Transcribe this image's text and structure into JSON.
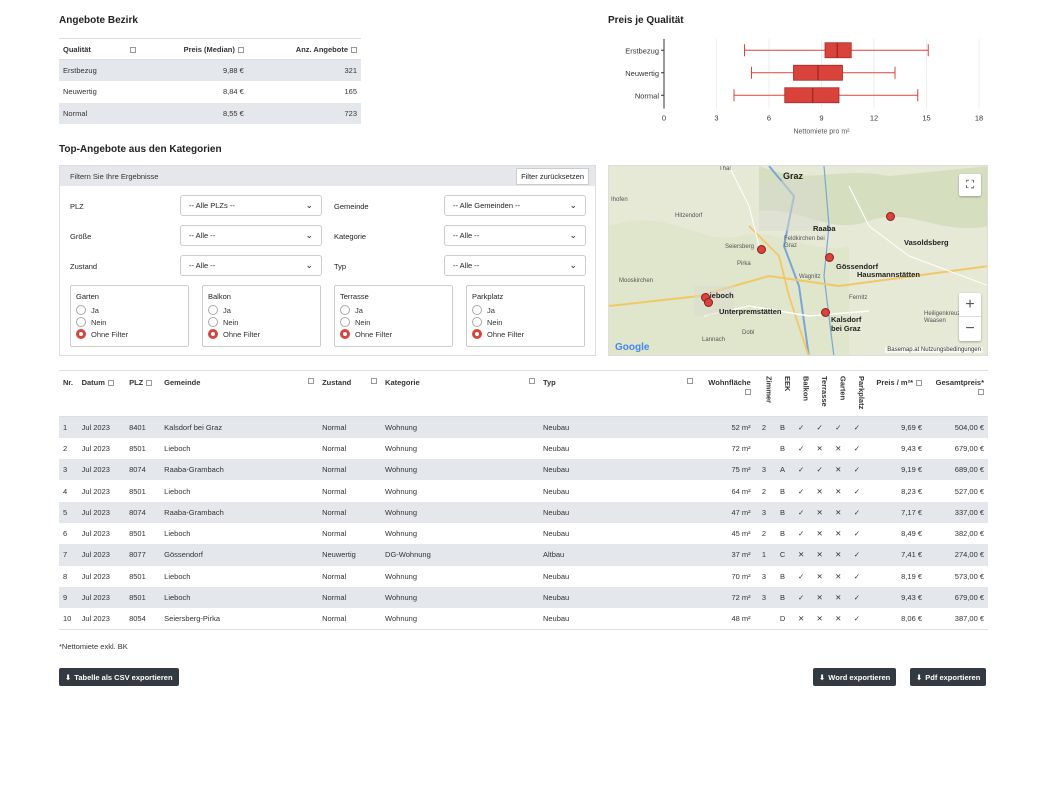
{
  "summary": {
    "title": "Angebote Bezirk",
    "headers": [
      "Qualität",
      "Preis (Median)",
      "Anz. Angebote"
    ],
    "rows": [
      [
        "Erstbezug",
        "9,88 €",
        "321"
      ],
      [
        "Neuwertig",
        "8,84 €",
        "165"
      ],
      [
        "Normal",
        "8,55 €",
        "723"
      ]
    ]
  },
  "chart_data": {
    "type": "box",
    "title": "Preis je Qualität",
    "xlabel": "Nettomiete pro m²",
    "ylabel": "",
    "xlim": [
      0,
      18
    ],
    "xticks": [
      0,
      3,
      6,
      9,
      12,
      15,
      18
    ],
    "categories": [
      "Erstbezug",
      "Neuwertig",
      "Normal"
    ],
    "boxes": [
      {
        "name": "Erstbezug",
        "min": 4.6,
        "q1": 9.2,
        "median": 9.9,
        "q3": 10.7,
        "max": 15.1
      },
      {
        "name": "Neuwertig",
        "min": 5.0,
        "q1": 7.4,
        "median": 8.8,
        "q3": 10.2,
        "max": 13.2
      },
      {
        "name": "Normal",
        "min": 4.0,
        "q1": 6.9,
        "median": 8.5,
        "q3": 10.0,
        "max": 14.5
      }
    ],
    "color": "#d9433b",
    "grid": true
  },
  "section_title": "Top-Angebote aus den Kategorien",
  "filter": {
    "header": "Filtern Sie Ihre Ergebnisse",
    "reset_label": "Filter zurücksetzen",
    "plz": {
      "label": "PLZ",
      "value": "-- Alle PLZs --"
    },
    "gemeinde": {
      "label": "Gemeinde",
      "value": "-- Alle Gemeinden --"
    },
    "groesse": {
      "label": "Größe",
      "value": "-- Alle --"
    },
    "kategorie": {
      "label": "Kategorie",
      "value": "-- Alle --"
    },
    "zustand": {
      "label": "Zustand",
      "value": "-- Alle --"
    },
    "typ": {
      "label": "Typ",
      "value": "-- Alle --"
    },
    "radios": [
      {
        "title": "Garten",
        "options": [
          "Ja",
          "Nein",
          "Ohne Filter"
        ],
        "selected": 2
      },
      {
        "title": "Balkon",
        "options": [
          "Ja",
          "Nein",
          "Ohne Filter"
        ],
        "selected": 2
      },
      {
        "title": "Terrasse",
        "options": [
          "Ja",
          "Nein",
          "Ohne Filter"
        ],
        "selected": 2
      },
      {
        "title": "Parkplatz",
        "options": [
          "Ja",
          "Nein",
          "Ohne Filter"
        ],
        "selected": 2
      }
    ]
  },
  "map": {
    "labels": {
      "graz": "Graz",
      "raaba": "Raaba",
      "vasoldsberg": "Vasoldsberg",
      "seiersberg": "Seiersberg",
      "goessendorf": "Gössendorf",
      "hausmannstaetten": "Hausmannstätten",
      "lieboch": "Lieboch",
      "unterpremstaetten": "Unterpremstätten",
      "kalsdorf": "Kalsdorf bei Graz",
      "hitzendorf": "Hitzendorf",
      "pirka": "Pirka",
      "mooskirchen": "Mooskirchen",
      "lannach": "Lannach",
      "dobl": "Dobl",
      "fernitz": "Fernitz",
      "wagnitz": "Wagnitz",
      "feldkirchen": "Feldkirchen bei Graz",
      "heiligenkreuz": "Heiligenkreuz am Waasen",
      "thal": "Thal",
      "rohrbach": "Ihofen"
    },
    "google": "Google",
    "attribution": "Basemap.at   Nutzungsbedingungen",
    "fullscreen_icon": "⛶",
    "zoom_in": "+",
    "zoom_out": "−"
  },
  "table": {
    "headers": [
      "Nr.",
      "Datum",
      "PLZ",
      "Gemeinde",
      "Zustand",
      "Kategorie",
      "Typ",
      "Wohnfläche",
      "Zimmer",
      "EEK",
      "Balkon",
      "Terrasse",
      "Garten",
      "Parkplatz",
      "Preis / m²*",
      "Gesamtpreis*"
    ],
    "rows": [
      [
        "1",
        "Jul 2023",
        "8401",
        "Kalsdorf bei Graz",
        "Normal",
        "Wohnung",
        "Neubau",
        "52 m²",
        "2",
        "B",
        "✓",
        "✓",
        "✓",
        "✓",
        "9,69 €",
        "504,00 €"
      ],
      [
        "2",
        "Jul 2023",
        "8501",
        "Lieboch",
        "Normal",
        "Wohnung",
        "Neubau",
        "72 m²",
        "",
        "B",
        "✓",
        "✕",
        "✕",
        "✓",
        "9,43 €",
        "679,00 €"
      ],
      [
        "3",
        "Jul 2023",
        "8074",
        "Raaba-Grambach",
        "Normal",
        "Wohnung",
        "Neubau",
        "75 m²",
        "3",
        "A",
        "✓",
        "✓",
        "✕",
        "✓",
        "9,19 €",
        "689,00 €"
      ],
      [
        "4",
        "Jul 2023",
        "8501",
        "Lieboch",
        "Normal",
        "Wohnung",
        "Neubau",
        "64 m²",
        "2",
        "B",
        "✓",
        "✕",
        "✕",
        "✓",
        "8,23 €",
        "527,00 €"
      ],
      [
        "5",
        "Jul 2023",
        "8074",
        "Raaba-Grambach",
        "Normal",
        "Wohnung",
        "Neubau",
        "47 m²",
        "3",
        "B",
        "✓",
        "✕",
        "✕",
        "✓",
        "7,17 €",
        "337,00 €"
      ],
      [
        "6",
        "Jul 2023",
        "8501",
        "Lieboch",
        "Normal",
        "Wohnung",
        "Neubau",
        "45 m²",
        "2",
        "B",
        "✓",
        "✕",
        "✕",
        "✓",
        "8,49 €",
        "382,00 €"
      ],
      [
        "7",
        "Jul 2023",
        "8077",
        "Gössendorf",
        "Neuwertig",
        "DG-Wohnung",
        "Altbau",
        "37 m²",
        "1",
        "C",
        "✕",
        "✕",
        "✕",
        "✓",
        "7,41 €",
        "274,00 €"
      ],
      [
        "8",
        "Jul 2023",
        "8501",
        "Lieboch",
        "Normal",
        "Wohnung",
        "Neubau",
        "70 m²",
        "3",
        "B",
        "✓",
        "✕",
        "✕",
        "✓",
        "8,19 €",
        "573,00 €"
      ],
      [
        "9",
        "Jul 2023",
        "8501",
        "Lieboch",
        "Normal",
        "Wohnung",
        "Neubau",
        "72 m²",
        "3",
        "B",
        "✓",
        "✕",
        "✕",
        "✓",
        "9,43 €",
        "679,00 €"
      ],
      [
        "10",
        "Jul 2023",
        "8054",
        "Seiersberg-Pirka",
        "Normal",
        "Wohnung",
        "Neubau",
        "48 m²",
        "",
        "D",
        "✕",
        "✕",
        "✕",
        "✓",
        "8,06 €",
        "387,00 €"
      ]
    ]
  },
  "footnote": "*Nettomiete exkl. BK",
  "buttons": {
    "csv": "Tabelle als CSV exportieren",
    "word": "Word exportieren",
    "pdf": "Pdf exportieren",
    "download_icon": "⬇"
  }
}
